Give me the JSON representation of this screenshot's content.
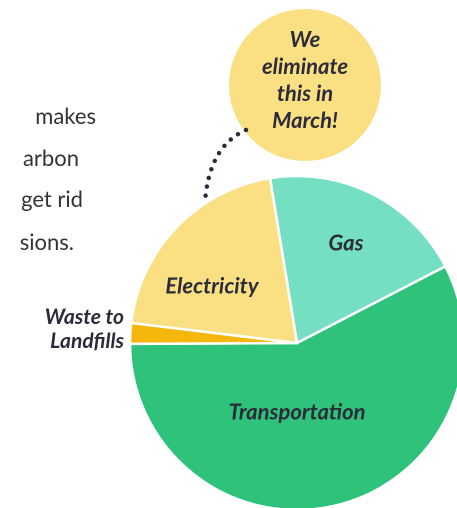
{
  "paragraph_lines": [
    "makes",
    "arbon",
    "get rid",
    "sions."
  ],
  "chart_data": {
    "type": "pie",
    "categories": [
      "Gas",
      "Transportation",
      "Waste to Landfills",
      "Electricity"
    ],
    "values": [
      20,
      57.5,
      2,
      20.5
    ],
    "colors": [
      "#74dfc3",
      "#2ec27a",
      "#f6b70d",
      "#fbe083"
    ],
    "annotation": "We eliminate this in March!"
  }
}
